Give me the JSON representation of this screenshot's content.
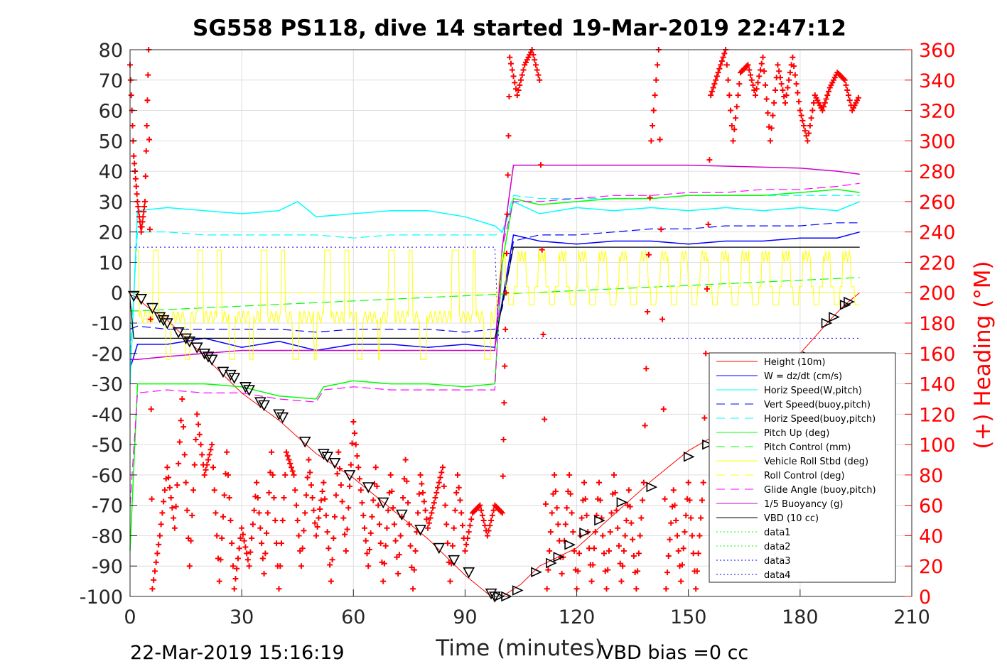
{
  "chart_data": {
    "type": "line",
    "title": "SG558 PS118, dive 14 started 19-Mar-2019 22:47:12",
    "xlabel": "Time (minutes)",
    "ylabel": "",
    "y2label": "(+) Heading (°M)",
    "xlim": [
      0,
      210
    ],
    "ylim": [
      -100,
      80
    ],
    "y2lim": [
      0,
      360
    ],
    "xticks": [
      0,
      30,
      60,
      90,
      120,
      150,
      180,
      210
    ],
    "yticks": [
      80,
      70,
      60,
      50,
      40,
      30,
      20,
      10,
      0,
      -10,
      -20,
      -30,
      -40,
      -50,
      -60,
      -70,
      -80,
      -90,
      -100
    ],
    "y2ticks": [
      360,
      340,
      320,
      300,
      280,
      260,
      240,
      220,
      200,
      180,
      160,
      140,
      120,
      100,
      80,
      60,
      40,
      20,
      0
    ],
    "grid": true,
    "legend_position": "lower-right",
    "footer_left": "22-Mar-2019 15:16:19",
    "footer_right": "VBD bias =0 cc",
    "legend": [
      {
        "label": "Height (10m)",
        "color": "#ff0000",
        "style": "solid"
      },
      {
        "label": "W = dz/dt (cm/s)",
        "color": "#0000ff",
        "style": "solid"
      },
      {
        "label": "Horiz Speed(W,pitch)",
        "color": "#00ffff",
        "style": "solid"
      },
      {
        "label": "Vert Speed(buoy,pitch)",
        "color": "#0000ff",
        "style": "dashed"
      },
      {
        "label": "Horiz Speed(buoy,pitch)",
        "color": "#00ffff",
        "style": "dashed"
      },
      {
        "label": "Pitch Up (deg)",
        "color": "#00ff00",
        "style": "solid"
      },
      {
        "label": "Pitch Control (mm)",
        "color": "#00ff00",
        "style": "dashed"
      },
      {
        "label": "Vehicle Roll Stbd (deg)",
        "color": "#ffff00",
        "style": "solid"
      },
      {
        "label": "Roll Control (deg)",
        "color": "#ffff00",
        "style": "dashed"
      },
      {
        "label": "Glide Angle (buoy,pitch)",
        "color": "#ff00ff",
        "style": "dashed"
      },
      {
        "label": "1/5 Buoyancy (g)",
        "color": "#cc00cc",
        "style": "solid"
      },
      {
        "label": "VBD (10 cc)",
        "color": "#000000",
        "style": "solid"
      },
      {
        "label": "data1",
        "color": "#00ff00",
        "style": "dotted"
      },
      {
        "label": "data2",
        "color": "#00ff00",
        "style": "dotted"
      },
      {
        "label": "data3",
        "color": "#0000ff",
        "style": "dotted"
      },
      {
        "label": "data4",
        "color": "#0000ff",
        "style": "dotted"
      }
    ],
    "series": [
      {
        "key": "height",
        "x": [
          0,
          1,
          5,
          10,
          20,
          30,
          40,
          50,
          60,
          70,
          80,
          90,
          97,
          98,
          100,
          105,
          110,
          120,
          130,
          140,
          150,
          160,
          170,
          180,
          188,
          192,
          196
        ],
        "values": [
          -1,
          -1,
          -5,
          -9,
          -21,
          -33,
          -42,
          -53,
          -61,
          -71,
          -81,
          -93,
          -100,
          -100,
          -100,
          -96,
          -90,
          -84,
          -73,
          -62,
          -52,
          -45,
          -33,
          -20,
          -9,
          -4,
          0
        ]
      },
      {
        "key": "vbd_markers",
        "x": [
          1,
          3,
          6,
          8,
          9,
          10,
          13,
          15,
          16,
          18,
          20,
          21,
          22,
          25,
          27,
          28,
          31,
          32,
          35,
          36,
          40,
          41,
          47,
          52,
          53,
          55,
          59,
          64,
          68,
          73,
          78,
          83,
          87,
          91,
          97,
          98,
          99,
          101,
          104,
          109,
          113,
          115,
          118,
          122,
          126,
          132,
          140,
          150,
          155,
          161,
          168,
          176,
          182,
          187,
          189,
          192,
          193
        ],
        "values": [
          -1,
          -2,
          -5,
          -8,
          -9,
          -10,
          -13,
          -15,
          -16,
          -18,
          -20,
          -21,
          -22,
          -26,
          -27,
          -28,
          -31,
          -32,
          -36,
          -37,
          -40,
          -41,
          -49,
          -53,
          -54,
          -56,
          -60,
          -64,
          -69,
          -73,
          -78,
          -84,
          -88,
          -92,
          -99,
          -100,
          -100,
          -100,
          -98,
          -92,
          -89,
          -87,
          -83,
          -79,
          -75,
          -69,
          -64,
          -54,
          -50,
          -45,
          -37,
          -29,
          -21,
          -10,
          -8,
          -4,
          -3
        ]
      },
      {
        "key": "w",
        "x": [
          0,
          2,
          10,
          20,
          30,
          40,
          50,
          60,
          70,
          80,
          90,
          98,
          99,
          103,
          110,
          120,
          130,
          140,
          150,
          160,
          170,
          180,
          190,
          196
        ],
        "values": [
          -25,
          -17,
          -17,
          -15,
          -18,
          -16,
          -19,
          -17,
          -17,
          -18,
          -17,
          -18,
          -10,
          19,
          17,
          16,
          17,
          17,
          16,
          17,
          17,
          18,
          18,
          20
        ]
      },
      {
        "key": "horiz_speed",
        "x": [
          0,
          2,
          10,
          20,
          30,
          40,
          45,
          50,
          60,
          70,
          80,
          90,
          98,
          100,
          103,
          110,
          120,
          130,
          140,
          150,
          160,
          170,
          180,
          190,
          196
        ],
        "values": [
          -30,
          27,
          28,
          27,
          26,
          27,
          30,
          25,
          26,
          27,
          27,
          25,
          22,
          20,
          30,
          26,
          28,
          27,
          28,
          27,
          28,
          27,
          28,
          27,
          30
        ]
      },
      {
        "key": "vert_speed_buoy",
        "x": [
          0,
          2,
          10,
          20,
          30,
          40,
          50,
          60,
          70,
          80,
          90,
          98,
          100,
          103,
          110,
          120,
          130,
          140,
          150,
          160,
          170,
          180,
          190,
          196
        ],
        "values": [
          -12,
          -11,
          -12,
          -12,
          -12,
          -12,
          -13,
          -12,
          -12,
          -12,
          -13,
          -12,
          -5,
          17,
          19,
          19,
          20,
          21,
          21,
          22,
          22,
          22,
          23,
          23
        ]
      },
      {
        "key": "horiz_speed_buoy",
        "x": [
          0,
          2,
          10,
          20,
          30,
          40,
          50,
          60,
          70,
          80,
          90,
          98,
          100,
          103,
          110,
          120,
          130,
          140,
          150,
          160,
          170,
          180,
          190,
          196
        ],
        "values": [
          -20,
          20,
          20,
          19,
          19,
          19,
          19,
          18,
          19,
          19,
          19,
          19,
          20,
          32,
          31,
          31,
          31,
          31,
          32,
          32,
          32,
          32,
          32,
          32
        ]
      },
      {
        "key": "pitch_up",
        "x": [
          0,
          2,
          10,
          20,
          30,
          40,
          50,
          52,
          60,
          70,
          80,
          90,
          98,
          100,
          103,
          110,
          120,
          130,
          140,
          150,
          160,
          170,
          180,
          190,
          196
        ],
        "values": [
          -85,
          -30,
          -30,
          -30,
          -31,
          -34,
          -35,
          -31,
          -29,
          -30,
          -30,
          -31,
          -30,
          10,
          31,
          29,
          30,
          31,
          31,
          32,
          32,
          32,
          33,
          34,
          33
        ]
      },
      {
        "key": "pitch_control",
        "x": [
          0,
          2,
          196
        ],
        "values": [
          -6,
          -6,
          5
        ]
      },
      {
        "key": "glide_angle",
        "x": [
          0,
          2,
          10,
          20,
          30,
          40,
          50,
          52,
          60,
          70,
          80,
          90,
          98,
          100,
          103,
          110,
          120,
          130,
          140,
          150,
          160,
          170,
          180,
          190,
          196
        ],
        "values": [
          -70,
          -33,
          -32,
          -33,
          -33,
          -35,
          -36,
          -32,
          -31,
          -32,
          -32,
          -32,
          -32,
          15,
          30,
          30,
          31,
          32,
          32,
          33,
          33,
          34,
          34,
          35,
          36
        ]
      },
      {
        "key": "buoyancy",
        "x": [
          0,
          2,
          10,
          20,
          30,
          50,
          70,
          90,
          98,
          100,
          103,
          120,
          150,
          180,
          190,
          196
        ],
        "values": [
          -22,
          -22,
          -21,
          -20,
          -19,
          -19,
          -19,
          -19,
          -19,
          15,
          42,
          42,
          42,
          41,
          40,
          39
        ]
      },
      {
        "key": "vbd",
        "x": [
          0,
          1,
          98,
          99,
          103,
          196
        ],
        "values": [
          -2,
          -15,
          -15,
          -10,
          15,
          15
        ]
      },
      {
        "key": "data_dotted",
        "x": [
          0,
          98,
          99,
          196
        ],
        "values": [
          15,
          15,
          -15,
          -15
        ]
      },
      {
        "key": "heading",
        "axis": "right",
        "x": [
          0,
          1,
          2,
          3,
          4,
          5,
          6,
          8,
          10,
          12,
          14,
          16,
          18,
          20,
          22,
          24,
          26,
          28,
          30,
          32,
          34,
          36,
          38,
          40,
          42,
          44,
          46,
          48,
          50,
          52,
          54,
          56,
          58,
          60,
          62,
          64,
          66,
          68,
          70,
          72,
          74,
          76,
          78,
          80,
          82,
          84,
          86,
          88,
          90,
          92,
          94,
          96,
          98,
          100,
          101,
          102,
          104,
          106,
          108,
          110,
          112,
          114,
          116,
          118,
          120,
          122,
          124,
          126,
          128,
          130,
          132,
          134,
          136,
          138,
          140,
          142,
          144,
          146,
          148,
          150,
          152,
          154,
          156,
          158,
          160,
          162,
          164,
          166,
          168,
          170,
          172,
          174,
          176,
          178,
          180,
          182,
          184,
          186,
          188,
          190,
          192,
          194,
          196
        ],
        "values": [
          350,
          290,
          260,
          240,
          260,
          360,
          5,
          40,
          85,
          45,
          130,
          20,
          120,
          80,
          100,
          10,
          95,
          5,
          45,
          20,
          75,
          15,
          95,
          5,
          95,
          80,
          20,
          90,
          40,
          75,
          10,
          95,
          30,
          115,
          70,
          20,
          85,
          10,
          80,
          15,
          90,
          5,
          80,
          45,
          65,
          85,
          10,
          80,
          30,
          55,
          60,
          40,
          60,
          55,
          200,
          355,
          330,
          350,
          360,
          340,
          5,
          80,
          15,
          80,
          5,
          75,
          10,
          75,
          5,
          80,
          10,
          70,
          5,
          75,
          300,
          360,
          5,
          70,
          10,
          75,
          5,
          75,
          330,
          345,
          360,
          300,
          345,
          350,
          330,
          355,
          300,
          350,
          325,
          355,
          320,
          300,
          330,
          320,
          335,
          345,
          340,
          320,
          330
        ]
      }
    ]
  }
}
